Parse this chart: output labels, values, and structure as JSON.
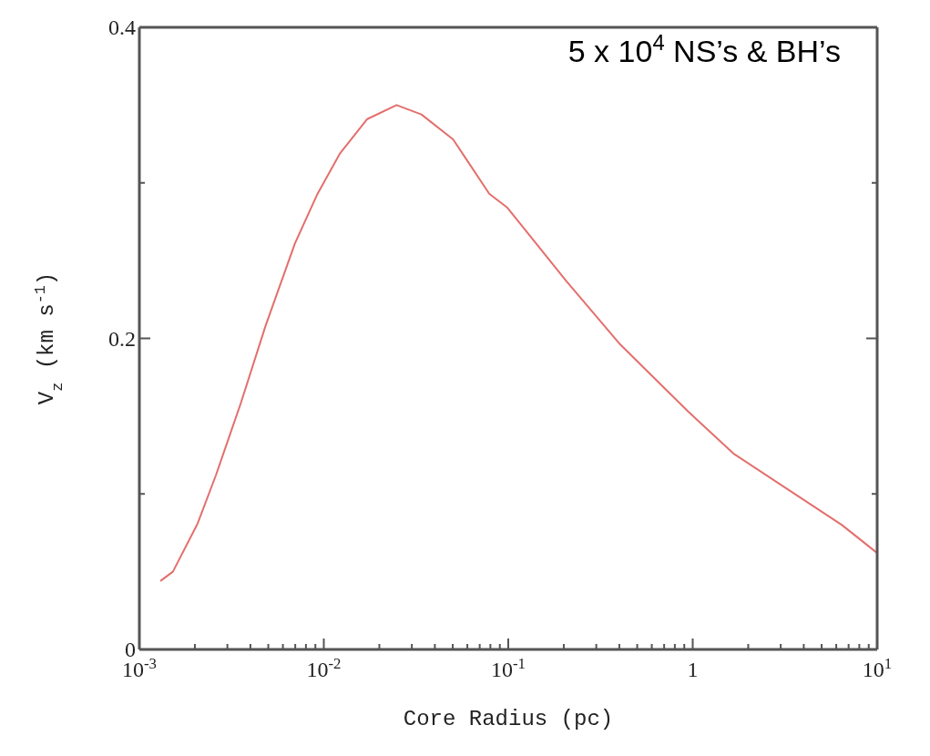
{
  "chart_data": {
    "type": "line",
    "xlabel": "Core Radius (pc)",
    "ylabel": "V$_{z}$ (km s$^{-1}$)",
    "log": "x",
    "grid": false,
    "marker": "none",
    "line_style": "solid",
    "xlim": [
      0.001,
      10
    ],
    "ylim": [
      0,
      0.4
    ],
    "xticks": [
      {
        "value": 0.001,
        "label": "10$^{-3}$"
      },
      {
        "value": 0.002,
        "label": null
      },
      {
        "value": 0.003,
        "label": null
      },
      {
        "value": 0.004,
        "label": null
      },
      {
        "value": 0.005,
        "label": null
      },
      {
        "value": 0.006,
        "label": null
      },
      {
        "value": 0.007,
        "label": null
      },
      {
        "value": 0.008,
        "label": null
      },
      {
        "value": 0.009,
        "label": null
      },
      {
        "value": 0.01,
        "label": "10$^{-2}$"
      },
      {
        "value": 0.02,
        "label": null
      },
      {
        "value": 0.03,
        "label": null
      },
      {
        "value": 0.04,
        "label": null
      },
      {
        "value": 0.05,
        "label": null
      },
      {
        "value": 0.06,
        "label": null
      },
      {
        "value": 0.07,
        "label": null
      },
      {
        "value": 0.08,
        "label": null
      },
      {
        "value": 0.09,
        "label": null
      },
      {
        "value": 0.1,
        "label": "10$^{-1}$"
      },
      {
        "value": 0.2,
        "label": null
      },
      {
        "value": 0.3,
        "label": null
      },
      {
        "value": 0.4,
        "label": null
      },
      {
        "value": 0.5,
        "label": null
      },
      {
        "value": 0.6,
        "label": null
      },
      {
        "value": 0.7,
        "label": null
      },
      {
        "value": 0.8,
        "label": null
      },
      {
        "value": 0.9,
        "label": null
      },
      1,
      {
        "value": 2,
        "label": null
      },
      {
        "value": 3,
        "label": null
      },
      {
        "value": 4,
        "label": null
      },
      {
        "value": 5,
        "label": null
      },
      {
        "value": 6,
        "label": null
      },
      {
        "value": 7,
        "label": null
      },
      {
        "value": 8,
        "label": null
      },
      {
        "value": 9,
        "label": null
      },
      {
        "value": 10,
        "label": "10$^{1}$"
      }
    ],
    "yticks": [
      0,
      {
        "value": 0.1,
        "label": null
      },
      0.2,
      {
        "value": 0.3,
        "label": null
      },
      0.4
    ],
    "annotations": [
      "5 x 10$^{4}$ NS’s & BH’s"
    ],
    "series": [
      {
        "color": "#e36f6c",
        "x": [
          0.0013,
          0.00152,
          0.00207,
          0.0026,
          0.00354,
          0.00483,
          0.00697,
          0.00925,
          0.01225,
          0.0172,
          0.0248,
          0.0338,
          0.0502,
          0.0789,
          0.0989,
          0.206,
          0.405,
          0.944,
          1.66,
          3.27,
          6.44,
          10
        ],
        "values": [
          0.044,
          0.05,
          0.081,
          0.112,
          0.158,
          0.208,
          0.261,
          0.293,
          0.319,
          0.341,
          0.35,
          0.344,
          0.328,
          0.293,
          0.284,
          0.237,
          0.196,
          0.153,
          0.126,
          0.103,
          0.08,
          0.062
        ]
      }
    ]
  }
}
